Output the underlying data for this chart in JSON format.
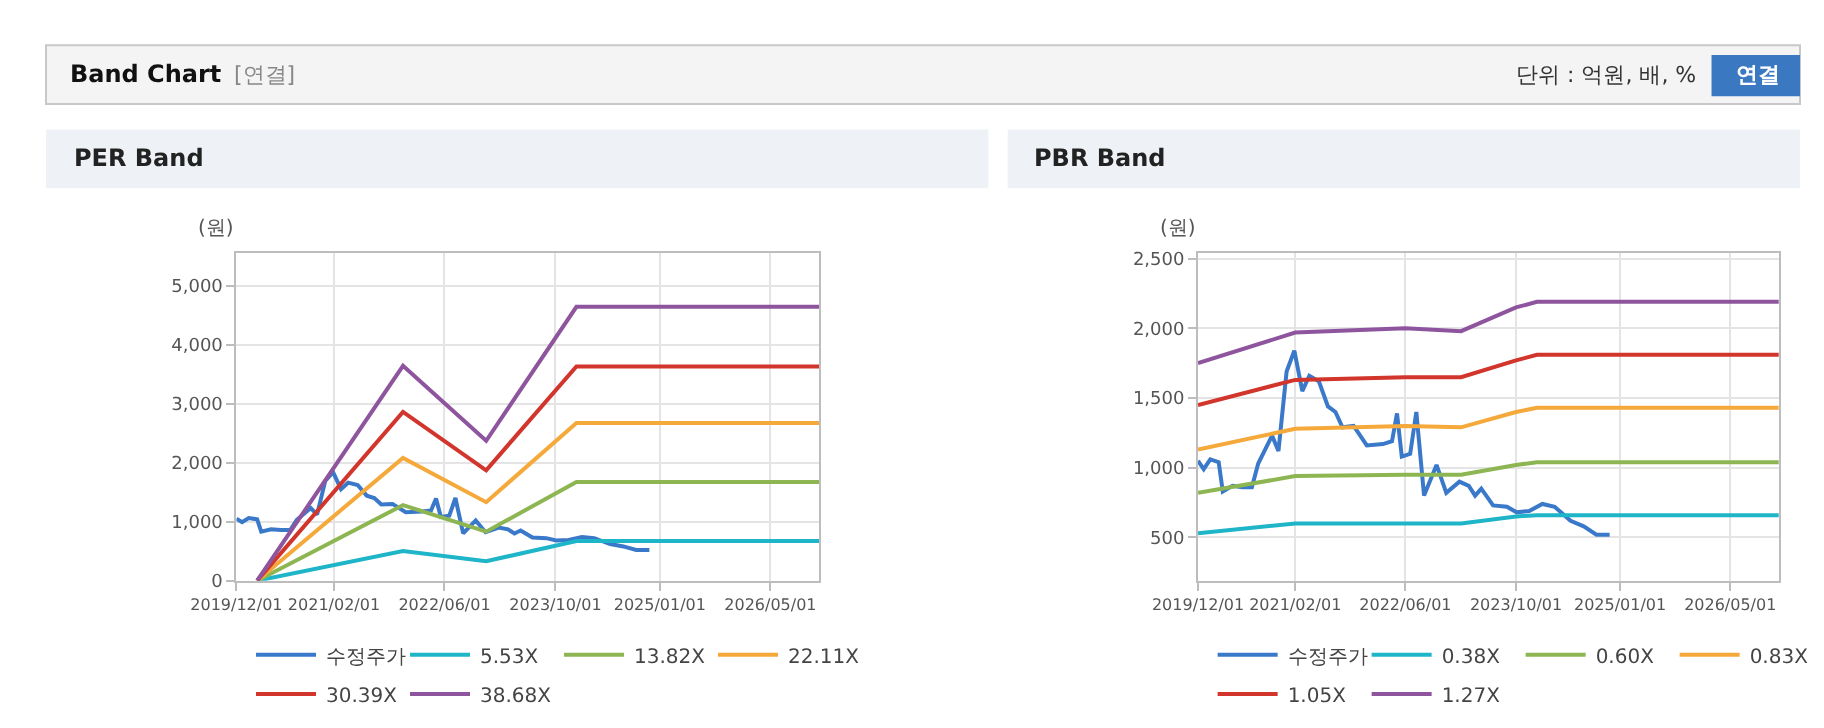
{
  "chart_data": [
    {
      "type": "line",
      "title": "PER Band",
      "ylabel": "(원)",
      "annotations": [
        "Band Chart",
        "[연결]",
        "단위 : 억원, 배, %",
        "연결"
      ],
      "xlim": [
        "2019-12-01",
        "2026-12-01"
      ],
      "ylim": [
        0,
        5550
      ],
      "xticks": [
        {
          "value": "2019-12-01",
          "label": "2019/12/01"
        },
        {
          "value": "2021-02-01",
          "label": "2021/02/01"
        },
        {
          "value": "2022-06-01",
          "label": "2022/06/01"
        },
        {
          "value": "2023-10-01",
          "label": "2023/10/01"
        },
        {
          "value": "2025-01-01",
          "label": "2025/01/01"
        },
        {
          "value": "2026-05-01",
          "label": "2026/05/01"
        }
      ],
      "yticks": [
        0,
        {
          "value": 1000,
          "label": "1,000"
        },
        {
          "value": 2000,
          "label": "2,000"
        },
        {
          "value": 3000,
          "label": "3,000"
        },
        {
          "value": 4000,
          "label": "4,000"
        },
        {
          "value": 5000,
          "label": "5,000"
        }
      ],
      "grid": true,
      "legend": "bottom",
      "line_style": "solid",
      "series": [
        {
          "name": "수정주가",
          "color": "#3a78c9",
          "x": [
            "2019-12-01",
            "2019-12-26",
            "2020-01-24",
            "2020-03-01",
            "2020-03-19",
            "2020-05-01",
            "2020-06-13",
            "2020-07-25",
            "2020-08-22",
            "2020-10-22",
            "2020-11-19",
            "2020-12-25",
            "2021-01-28",
            "2021-03-04",
            "2021-04-04",
            "2021-05-16",
            "2021-06-25",
            "2021-07-28",
            "2021-08-28",
            "2021-10-16",
            "2021-12-13",
            "2022-02-22",
            "2022-04-03",
            "2022-04-25",
            "2022-05-16",
            "2022-06-22",
            "2022-07-19",
            "2022-08-22",
            "2022-10-16",
            "2022-11-28",
            "2023-01-25",
            "2023-03-07",
            "2023-04-04",
            "2023-05-01",
            "2023-06-22",
            "2023-08-22",
            "2023-10-04",
            "2023-11-28",
            "2024-01-25",
            "2024-03-19",
            "2024-05-28",
            "2024-07-25",
            "2024-09-19",
            "2024-11-16"
          ],
          "values": [
            1050,
            990,
            1060,
            1040,
            830,
            870,
            860,
            860,
            1030,
            1230,
            1120,
            1690,
            1840,
            1550,
            1660,
            1620,
            1440,
            1400,
            1290,
            1300,
            1160,
            1170,
            1190,
            1390,
            1080,
            1100,
            1400,
            800,
            1020,
            820,
            900,
            870,
            800,
            850,
            730,
            720,
            680,
            690,
            740,
            720,
            620,
            580,
            520,
            520
          ]
        },
        {
          "name": "5.53X",
          "color": "#1fb5c9",
          "x": [
            "2020-03-01",
            "2021-12-01",
            "2022-12-01",
            "2024-01-01",
            "2026-12-01"
          ],
          "values": [
            0,
            500,
            330,
            670,
            670
          ]
        },
        {
          "name": "13.82X",
          "color": "#8db653",
          "x": [
            "2020-03-01",
            "2021-12-01",
            "2022-12-01",
            "2024-01-01",
            "2026-12-01"
          ],
          "values": [
            0,
            1280,
            830,
            1670,
            1670
          ]
        },
        {
          "name": "22.11X",
          "color": "#f5a93b",
          "x": [
            "2020-03-01",
            "2021-12-01",
            "2022-12-01",
            "2024-01-01",
            "2026-12-01"
          ],
          "values": [
            0,
            2080,
            1330,
            2670,
            2670
          ]
        },
        {
          "name": "30.39X",
          "color": "#d1352b",
          "x": [
            "2020-03-01",
            "2021-12-01",
            "2022-12-01",
            "2024-01-01",
            "2026-12-01"
          ],
          "values": [
            0,
            2860,
            1870,
            3630,
            3630
          ]
        },
        {
          "name": "38.68X",
          "color": "#8e559e",
          "x": [
            "2020-03-01",
            "2021-12-01",
            "2022-12-01",
            "2024-01-01",
            "2026-12-01"
          ],
          "values": [
            0,
            3640,
            2370,
            4640,
            4640
          ]
        }
      ]
    },
    {
      "type": "line",
      "title": "PBR Band",
      "ylabel": "(원)",
      "xlim": [
        "2019-12-01",
        "2026-12-01"
      ],
      "ylim": [
        190,
        2540
      ],
      "xticks": [
        {
          "value": "2019-12-01",
          "label": "2019/12/01"
        },
        {
          "value": "2021-02-01",
          "label": "2021/02/01"
        },
        {
          "value": "2022-06-01",
          "label": "2022/06/01"
        },
        {
          "value": "2023-10-01",
          "label": "2023/10/01"
        },
        {
          "value": "2025-01-01",
          "label": "2025/01/01"
        },
        {
          "value": "2026-05-01",
          "label": "2026/05/01"
        }
      ],
      "yticks": [
        500,
        {
          "value": 1000,
          "label": "1,000"
        },
        {
          "value": 1500,
          "label": "1,500"
        },
        {
          "value": 2000,
          "label": "2,000"
        },
        {
          "value": 2500,
          "label": "2,500"
        }
      ],
      "grid": true,
      "legend": "bottom",
      "line_style": "solid",
      "series": [
        {
          "name": "수정주가",
          "color": "#3a78c9",
          "x": [
            "2019-12-01",
            "2019-12-26",
            "2020-01-24",
            "2020-03-01",
            "2020-03-19",
            "2020-05-01",
            "2020-06-13",
            "2020-07-25",
            "2020-08-22",
            "2020-10-22",
            "2020-11-19",
            "2020-12-25",
            "2021-01-28",
            "2021-03-04",
            "2021-04-04",
            "2021-05-16",
            "2021-06-25",
            "2021-07-28",
            "2021-08-28",
            "2021-10-16",
            "2021-12-13",
            "2022-02-22",
            "2022-04-03",
            "2022-04-25",
            "2022-05-16",
            "2022-06-22",
            "2022-07-19",
            "2022-08-22",
            "2022-10-16",
            "2022-11-28",
            "2023-01-25",
            "2023-03-07",
            "2023-04-04",
            "2023-05-01",
            "2023-06-22",
            "2023-08-22",
            "2023-10-04",
            "2023-11-28",
            "2024-01-25",
            "2024-03-19",
            "2024-05-28",
            "2024-07-25",
            "2024-09-19",
            "2024-11-16"
          ],
          "values": [
            1050,
            990,
            1060,
            1040,
            830,
            870,
            860,
            860,
            1030,
            1230,
            1120,
            1690,
            1840,
            1550,
            1660,
            1620,
            1440,
            1400,
            1290,
            1300,
            1160,
            1170,
            1190,
            1390,
            1080,
            1100,
            1400,
            800,
            1020,
            820,
            900,
            870,
            800,
            850,
            730,
            720,
            680,
            690,
            740,
            720,
            620,
            580,
            520,
            520
          ]
        },
        {
          "name": "0.38X",
          "color": "#1fb5c9",
          "x": [
            "2019-12-01",
            "2021-02-01",
            "2022-06-01",
            "2023-02-01",
            "2023-10-01",
            "2024-01-01",
            "2026-12-01"
          ],
          "values": [
            530,
            600,
            600,
            600,
            650,
            660,
            660
          ]
        },
        {
          "name": "0.60X",
          "color": "#8db653",
          "x": [
            "2019-12-01",
            "2021-02-01",
            "2022-06-01",
            "2023-02-01",
            "2023-10-01",
            "2024-01-01",
            "2026-12-01"
          ],
          "values": [
            820,
            940,
            950,
            950,
            1020,
            1040,
            1040
          ]
        },
        {
          "name": "0.83X",
          "color": "#f5a93b",
          "x": [
            "2019-12-01",
            "2021-02-01",
            "2022-06-01",
            "2023-02-01",
            "2023-10-01",
            "2024-01-01",
            "2026-12-01"
          ],
          "values": [
            1130,
            1280,
            1300,
            1290,
            1400,
            1430,
            1430
          ]
        },
        {
          "name": "1.05X",
          "color": "#d1352b",
          "x": [
            "2019-12-01",
            "2021-02-01",
            "2022-06-01",
            "2023-02-01",
            "2023-10-01",
            "2024-01-01",
            "2026-12-01"
          ],
          "values": [
            1450,
            1630,
            1650,
            1650,
            1770,
            1810,
            1810
          ]
        },
        {
          "name": "1.27X",
          "color": "#8e559e",
          "x": [
            "2019-12-01",
            "2021-02-01",
            "2022-06-01",
            "2023-02-01",
            "2023-10-01",
            "2024-01-01",
            "2026-12-01"
          ],
          "values": [
            1750,
            1970,
            2000,
            1980,
            2150,
            2190,
            2190
          ]
        }
      ]
    }
  ]
}
